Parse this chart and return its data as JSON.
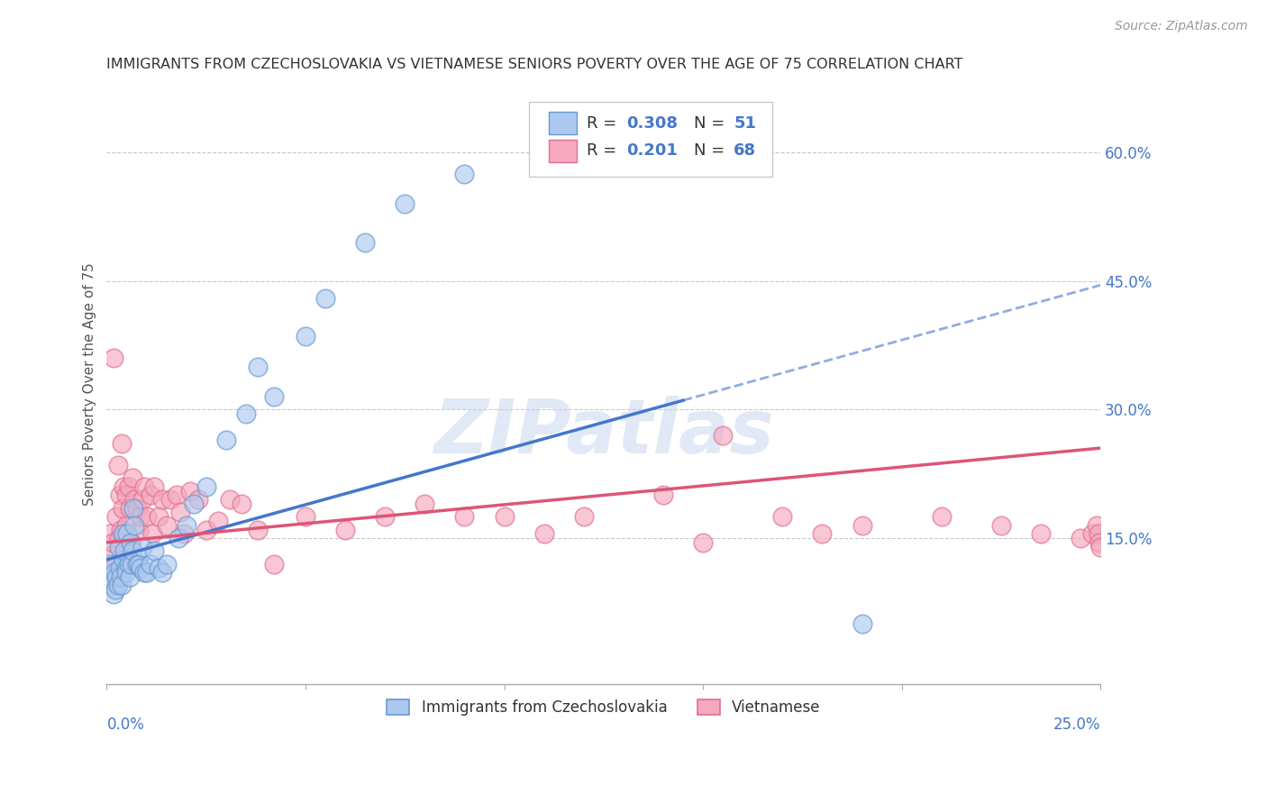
{
  "title": "IMMIGRANTS FROM CZECHOSLOVAKIA VS VIETNAMESE SENIORS POVERTY OVER THE AGE OF 75 CORRELATION CHART",
  "source": "Source: ZipAtlas.com",
  "ylabel": "Seniors Poverty Over the Age of 75",
  "right_yticks": [
    0.15,
    0.3,
    0.45,
    0.6
  ],
  "right_ytick_labels": [
    "15.0%",
    "30.0%",
    "45.0%",
    "60.0%"
  ],
  "xlim": [
    0.0,
    0.25
  ],
  "ylim": [
    -0.02,
    0.68
  ],
  "legend_label1": "Immigrants from Czechoslovakia",
  "legend_label2": "Vietnamese",
  "blue_fill": "#adc8f0",
  "blue_edge": "#6699cc",
  "pink_fill": "#f5a8be",
  "pink_edge": "#e07090",
  "trend_blue": "#4477cc",
  "trend_pink": "#dd5577",
  "watermark_color": "#c8d8ee",
  "blue_line_solid_end": 0.145,
  "blue_intercept": 0.125,
  "blue_slope": 1.28,
  "pink_intercept": 0.145,
  "pink_slope": 0.44,
  "blue_scatter_x": [
    0.0008,
    0.001,
    0.0012,
    0.0015,
    0.0018,
    0.002,
    0.0022,
    0.0025,
    0.0028,
    0.003,
    0.0032,
    0.0035,
    0.0038,
    0.004,
    0.0042,
    0.0045,
    0.0048,
    0.005,
    0.0052,
    0.0055,
    0.0058,
    0.006,
    0.0062,
    0.0065,
    0.0068,
    0.007,
    0.0075,
    0.008,
    0.0085,
    0.009,
    0.0095,
    0.01,
    0.011,
    0.012,
    0.013,
    0.014,
    0.015,
    0.018,
    0.02,
    0.022,
    0.025,
    0.03,
    0.035,
    0.038,
    0.042,
    0.05,
    0.055,
    0.065,
    0.075,
    0.09,
    0.19
  ],
  "blue_scatter_y": [
    0.12,
    0.105,
    0.095,
    0.1,
    0.085,
    0.11,
    0.09,
    0.105,
    0.095,
    0.14,
    0.115,
    0.105,
    0.095,
    0.155,
    0.125,
    0.135,
    0.115,
    0.11,
    0.155,
    0.12,
    0.105,
    0.145,
    0.12,
    0.135,
    0.185,
    0.165,
    0.12,
    0.12,
    0.115,
    0.14,
    0.11,
    0.11,
    0.12,
    0.135,
    0.115,
    0.11,
    0.12,
    0.15,
    0.165,
    0.19,
    0.21,
    0.265,
    0.295,
    0.35,
    0.315,
    0.385,
    0.43,
    0.495,
    0.54,
    0.575,
    0.05
  ],
  "pink_scatter_x": [
    0.0008,
    0.0012,
    0.0015,
    0.0018,
    0.002,
    0.0025,
    0.0028,
    0.003,
    0.0032,
    0.0035,
    0.0038,
    0.004,
    0.0042,
    0.0045,
    0.0048,
    0.005,
    0.0055,
    0.0058,
    0.006,
    0.0065,
    0.007,
    0.0075,
    0.008,
    0.0085,
    0.009,
    0.0095,
    0.01,
    0.011,
    0.0115,
    0.012,
    0.013,
    0.014,
    0.015,
    0.016,
    0.0175,
    0.0185,
    0.0195,
    0.021,
    0.023,
    0.025,
    0.028,
    0.031,
    0.034,
    0.038,
    0.042,
    0.05,
    0.06,
    0.07,
    0.08,
    0.09,
    0.1,
    0.11,
    0.12,
    0.14,
    0.155,
    0.17,
    0.19,
    0.21,
    0.225,
    0.235,
    0.245,
    0.248,
    0.249,
    0.2495,
    0.2498,
    0.2499,
    0.15,
    0.18
  ],
  "pink_scatter_y": [
    0.155,
    0.13,
    0.145,
    0.36,
    0.115,
    0.175,
    0.235,
    0.15,
    0.2,
    0.16,
    0.26,
    0.185,
    0.21,
    0.155,
    0.2,
    0.165,
    0.21,
    0.185,
    0.145,
    0.22,
    0.195,
    0.185,
    0.16,
    0.175,
    0.195,
    0.21,
    0.175,
    0.2,
    0.155,
    0.21,
    0.175,
    0.195,
    0.165,
    0.195,
    0.2,
    0.18,
    0.155,
    0.205,
    0.195,
    0.16,
    0.17,
    0.195,
    0.19,
    0.16,
    0.12,
    0.175,
    0.16,
    0.175,
    0.19,
    0.175,
    0.175,
    0.155,
    0.175,
    0.2,
    0.27,
    0.175,
    0.165,
    0.175,
    0.165,
    0.155,
    0.15,
    0.155,
    0.165,
    0.155,
    0.145,
    0.14,
    0.145,
    0.155
  ]
}
